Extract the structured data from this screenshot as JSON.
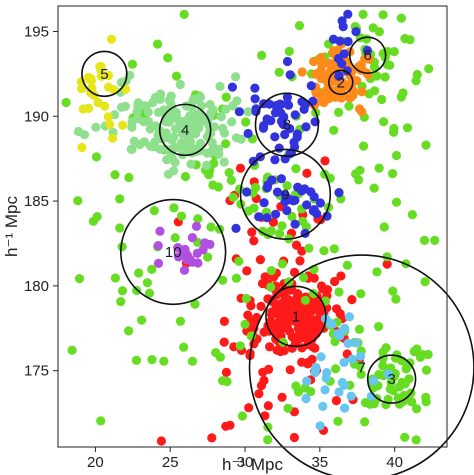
{
  "chart_data": {
    "type": "scatter",
    "xlabel": "h⁻¹ Mpc",
    "ylabel": "h⁻¹ Mpc",
    "xlim": [
      17.5,
      43.5
    ],
    "ylim": [
      170.5,
      196.5
    ],
    "x_ticks": [
      20,
      25,
      30,
      35,
      40
    ],
    "y_ticks": [
      175,
      180,
      185,
      190,
      195
    ],
    "grid": false,
    "legend": "none",
    "colors": {
      "red": "#ff1a1a",
      "green": "#66dd22",
      "light_green": "#8ee08e",
      "orange": "#ff8a1a",
      "yellow": "#e6e61a",
      "blue": "#3333dd",
      "purple": "#b04fe0",
      "sky_blue": "#66c6f0",
      "circle": "#111111"
    },
    "circles": [
      {
        "label": "1",
        "cx": 33.4,
        "cy": 178.2,
        "r": 2.0
      },
      {
        "label": "2",
        "cx": 36.4,
        "cy": 192.0,
        "r": 0.8
      },
      {
        "label": "3",
        "cx": 39.8,
        "cy": 174.5,
        "r": 1.6
      },
      {
        "label": "4",
        "cx": 26.0,
        "cy": 189.2,
        "r": 1.7
      },
      {
        "label": "5",
        "cx": 20.6,
        "cy": 192.5,
        "r": 1.5
      },
      {
        "label": "6",
        "cx": 38.2,
        "cy": 193.6,
        "r": 1.2
      },
      {
        "label": "7",
        "cx": 37.8,
        "cy": 175.2,
        "r": 7.5
      },
      {
        "label": "8",
        "cx": 32.8,
        "cy": 189.5,
        "r": 2.1
      },
      {
        "label": "9",
        "cx": 32.7,
        "cy": 185.4,
        "r": 3.0
      },
      {
        "label": "10",
        "cx": 25.2,
        "cy": 182.0,
        "r": 3.5
      }
    ],
    "series": [
      {
        "color": "red",
        "seed": 11,
        "clusters": [
          {
            "cx": 33.4,
            "cy": 178.2,
            "sx": 1.3,
            "sy": 1.2,
            "n": 170
          },
          {
            "cx": 32.5,
            "cy": 176.0,
            "sx": 3.0,
            "sy": 3.0,
            "n": 60
          },
          {
            "cx": 31.5,
            "cy": 183.0,
            "sx": 3.0,
            "sy": 3.0,
            "n": 30
          }
        ]
      },
      {
        "color": "green",
        "seed": 23,
        "clusters": [
          {
            "cx": 30.5,
            "cy": 183.0,
            "sx": 7.0,
            "sy": 7.0,
            "n": 230
          },
          {
            "cx": 39.8,
            "cy": 174.5,
            "sx": 1.4,
            "sy": 1.3,
            "n": 60
          },
          {
            "cx": 38.5,
            "cy": 193.3,
            "sx": 1.6,
            "sy": 1.4,
            "n": 40
          }
        ]
      },
      {
        "color": "light_green",
        "seed": 37,
        "clusters": [
          {
            "cx": 26.0,
            "cy": 189.2,
            "sx": 1.5,
            "sy": 1.1,
            "n": 110
          },
          {
            "cx": 23.5,
            "cy": 190.2,
            "sx": 2.8,
            "sy": 1.2,
            "n": 50
          }
        ]
      },
      {
        "color": "orange",
        "seed": 41,
        "clusters": [
          {
            "cx": 36.4,
            "cy": 192.3,
            "sx": 1.1,
            "sy": 0.8,
            "n": 90
          }
        ]
      },
      {
        "color": "yellow",
        "seed": 53,
        "clusters": [
          {
            "cx": 20.4,
            "cy": 191.5,
            "sx": 1.0,
            "sy": 1.4,
            "n": 28
          }
        ]
      },
      {
        "color": "blue",
        "seed": 59,
        "clusters": [
          {
            "cx": 32.6,
            "cy": 189.8,
            "sx": 1.2,
            "sy": 0.9,
            "n": 45
          },
          {
            "cx": 32.8,
            "cy": 185.0,
            "sx": 1.6,
            "sy": 1.4,
            "n": 35
          },
          {
            "cx": 36.5,
            "cy": 193.8,
            "sx": 0.8,
            "sy": 0.9,
            "n": 14
          }
        ]
      },
      {
        "color": "purple",
        "seed": 61,
        "clusters": [
          {
            "cx": 25.8,
            "cy": 182.2,
            "sx": 1.1,
            "sy": 0.7,
            "n": 20
          }
        ]
      },
      {
        "color": "sky_blue",
        "seed": 67,
        "clusters": [
          {
            "cx": 36.5,
            "cy": 175.0,
            "sx": 1.4,
            "sy": 1.6,
            "n": 32
          }
        ]
      }
    ]
  }
}
